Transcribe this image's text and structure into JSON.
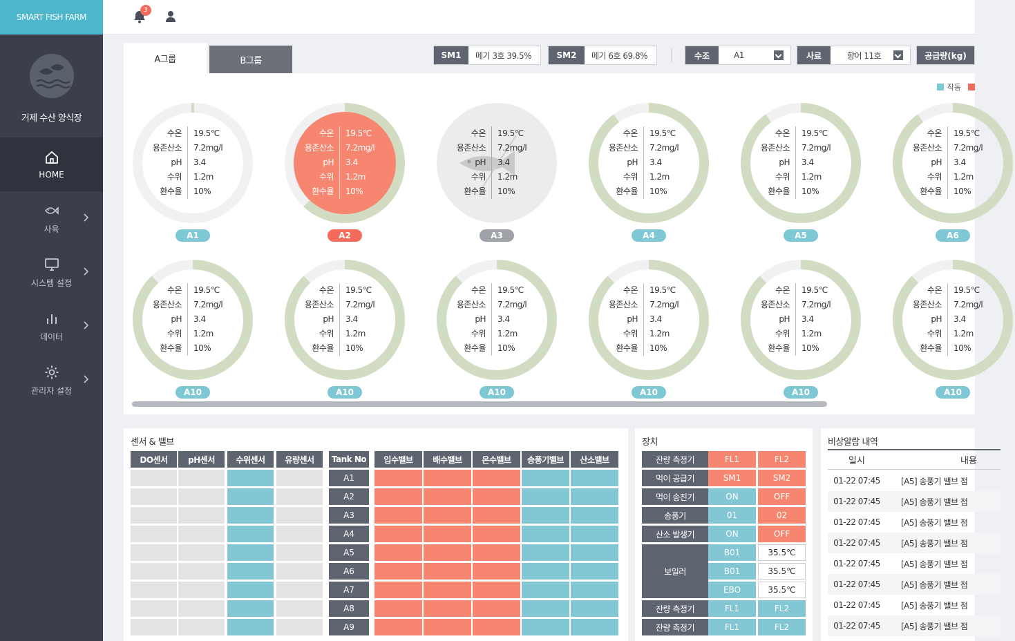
{
  "brand": "SMART FISH FARM",
  "farm_name": "거제 수산 양식장",
  "notifications": {
    "count": "3"
  },
  "sidebar": {
    "items": [
      {
        "label": "HOME",
        "icon": "home-icon",
        "active": true
      },
      {
        "label": "사육",
        "icon": "fish-icon"
      },
      {
        "label": "시스템 설정",
        "icon": "monitor-icon"
      },
      {
        "label": "데이터",
        "icon": "bar-chart-icon"
      },
      {
        "label": "관리자 설정",
        "icon": "gear-icon"
      }
    ]
  },
  "tabs": [
    "A그룹",
    "B그룹"
  ],
  "controls": {
    "sm1": {
      "label": "SM1",
      "value": "메기 3호 39.5%"
    },
    "sm2": {
      "label": "SM2",
      "value": "메기 6호 69.8%"
    },
    "tank_select": {
      "label": "수조",
      "value": "A1"
    },
    "feed_select": {
      "label": "사료",
      "value": "향어 11호"
    },
    "supply": {
      "label": "공급량(kg)"
    }
  },
  "legend": {
    "active_label": "작동",
    "colors": {
      "active": "#7ec8d6",
      "alarm": "#f36b5a"
    }
  },
  "stat_labels": [
    "수온",
    "용존산소",
    "pH",
    "수위",
    "환수율"
  ],
  "tanks_row1": [
    {
      "name": "A1",
      "status": "normal",
      "fill": 0.0,
      "values": [
        "19.5℃",
        "7.2mg/l",
        "3.4",
        "1.2m",
        "10%"
      ]
    },
    {
      "name": "A2",
      "status": "alarm",
      "fill": 0.62,
      "values": [
        "19.5℃",
        "7.2mg/l",
        "3.4",
        "1.2m",
        "10%"
      ]
    },
    {
      "name": "A3",
      "status": "off",
      "fill": 0.0,
      "values": [
        "19.5℃",
        "7.2mg/l",
        "3.4",
        "1.2m",
        "10%"
      ]
    },
    {
      "name": "A4",
      "status": "normal",
      "fill": 0.9,
      "values": [
        "19.5℃",
        "7.2mg/l",
        "3.4",
        "1.2m",
        "10%"
      ]
    },
    {
      "name": "A5",
      "status": "normal",
      "fill": 0.9,
      "values": [
        "19.5℃",
        "7.2mg/l",
        "3.4",
        "1.2m",
        "10%"
      ]
    },
    {
      "name": "A6",
      "status": "normal",
      "fill": 0.9,
      "values": [
        "19.5℃",
        "7.2mg/l",
        "3.4",
        "1.2m",
        "10%"
      ]
    }
  ],
  "tanks_row2": [
    {
      "name": "A10",
      "status": "normal",
      "fill": 0.88,
      "values": [
        "19.5℃",
        "7.2mg/l",
        "3.4",
        "1.2m",
        "10%"
      ]
    },
    {
      "name": "A10",
      "status": "normal",
      "fill": 0.88,
      "values": [
        "19.5℃",
        "7.2mg/l",
        "3.4",
        "1.2m",
        "10%"
      ]
    },
    {
      "name": "A10",
      "status": "normal",
      "fill": 0.88,
      "values": [
        "19.5℃",
        "7.2mg/l",
        "3.4",
        "1.2m",
        "10%"
      ]
    },
    {
      "name": "A10",
      "status": "normal",
      "fill": 0.88,
      "values": [
        "19.5℃",
        "7.2mg/l",
        "3.4",
        "1.2m",
        "10%"
      ]
    },
    {
      "name": "A10",
      "status": "normal",
      "fill": 0.88,
      "values": [
        "19.5℃",
        "7.2mg/l",
        "3.4",
        "1.2m",
        "10%"
      ]
    },
    {
      "name": "A10",
      "status": "normal",
      "fill": 0.88,
      "values": [
        "19.5℃",
        "7.2mg/l",
        "3.4",
        "1.2m",
        "10%"
      ]
    }
  ],
  "sensors": {
    "title": "센서 & 밸브",
    "sensor_headers": [
      "DO센서",
      "pH센서",
      "수위센서",
      "유량센서"
    ],
    "tank_header": "Tank No",
    "valve_headers": [
      "입수밸브",
      "배수밸브",
      "온수밸브",
      "송풍기밸브",
      "산소밸브"
    ],
    "tanks": [
      "A1",
      "A2",
      "A3",
      "A4",
      "A5",
      "A6",
      "A7",
      "A8",
      "A9"
    ],
    "sensor_colors": [
      "#e3e3e3",
      "#e3e3e3",
      "#82c7d3",
      "#e3e3e3"
    ],
    "valve_colors": [
      "#f6866f",
      "#f6866f",
      "#f6866f",
      "#82c7d3",
      "#82c7d3"
    ]
  },
  "devices": {
    "title": "장치",
    "rows": [
      {
        "label": "잔량 측정기",
        "v1": "FL1",
        "v2": "FL2",
        "c1": "#f6866f",
        "c2": "#f6866f"
      },
      {
        "label": "먹이 공급기",
        "v1": "SM1",
        "v2": "SM2",
        "c1": "#f6866f",
        "c2": "#f6866f"
      },
      {
        "label": "먹이 송진기",
        "v1": "ON",
        "v2": "OFF",
        "c1": "#82c7d3",
        "c2": "#f6866f"
      },
      {
        "label": "송풍기",
        "v1": "01",
        "v2": "02",
        "c1": "#82c7d3",
        "c2": "#f6866f"
      },
      {
        "label": "산소 발생기",
        "v1": "ON",
        "v2": "OFF",
        "c1": "#82c7d3",
        "c2": "#f6866f"
      }
    ],
    "boiler": {
      "label": "보일러",
      "rows": [
        {
          "v1": "B01",
          "v2": "35.5℃"
        },
        {
          "v1": "B01",
          "v2": "35.5℃"
        },
        {
          "v1": "EBO",
          "v2": "35.5℃"
        }
      ]
    },
    "bottom_rows": [
      {
        "label": "잔량 측정기",
        "v1": "FL1",
        "v2": "FL2"
      },
      {
        "label": "잔량 측정기",
        "v1": "FL1",
        "v2": "FL2"
      }
    ]
  },
  "alarms": {
    "title": "비상알람 내역",
    "headers": [
      "일시",
      "내용"
    ],
    "rows": [
      {
        "time": "01-22 07:45",
        "msg": "[A5] 송풍기 밸브 점"
      },
      {
        "time": "01-22 07:45",
        "msg": "[A5] 송풍기 밸브 점"
      },
      {
        "time": "01-22 07:45",
        "msg": "[A5] 송풍기 밸브 점"
      },
      {
        "time": "01-22 07:45",
        "msg": "[A5] 송풍기 밸브 점"
      },
      {
        "time": "01-22 07:45",
        "msg": "[A5] 송풍기 밸브 점"
      },
      {
        "time": "01-22 07:45",
        "msg": "[A5] 송풍기 밸브 점"
      },
      {
        "time": "01-22 07:45",
        "msg": "[A5] 송풍기 밸브 점"
      },
      {
        "time": "01-22 07:45",
        "msg": "[A5] 송풍기 밸브 점"
      }
    ]
  }
}
